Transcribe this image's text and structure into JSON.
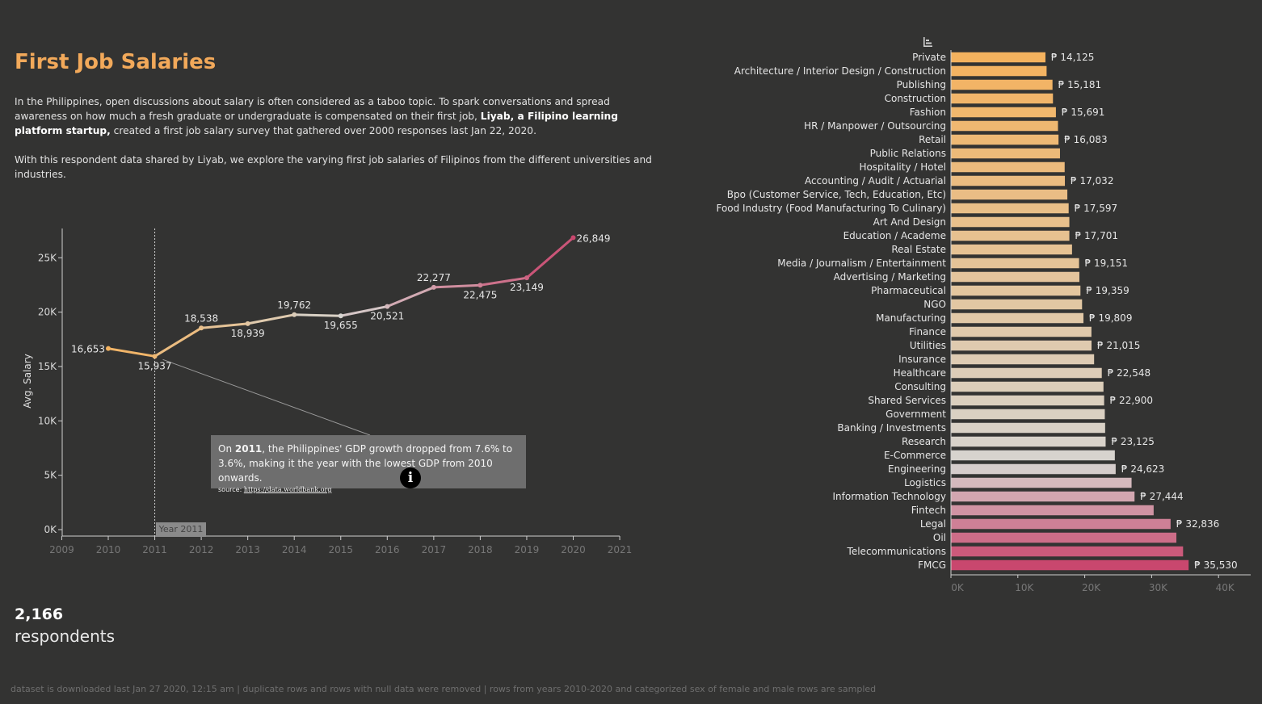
{
  "header": {
    "title": "First Job Salaries",
    "p1_a": "In the Philippines, open discussions about salary is often considered as a taboo topic. To spark conversations and spread awareness on how much a fresh graduate or undergraduate is compensated on their first job, ",
    "p1_bold": "Liyab, a Filipino learning platform startup,",
    "p1_b": " created a first job salary survey that gathered over 2000 responses last Jan 22, 2020.",
    "p2": "With this respondent data shared by Liyab, we explore the varying first job salaries of Filipinos from the different universities and industries."
  },
  "summary": {
    "count": "2,166",
    "label": "respondents"
  },
  "footer": {
    "note": "dataset is downloaded last  Jan 27 2020, 12:15 am | duplicate rows and rows with null data were removed | rows from years 2010-2020 and categorized sex of female and male rows are sampled"
  },
  "annotation": {
    "prefix": "On ",
    "year": "2011",
    "text": ", the Philippines' GDP growth dropped from 7.6% to 3.6%, making it the year with the lowest GDP from 2010 onwards.",
    "source_label": "source: ",
    "source_link": "https://data.worldbank.org",
    "marker_label": "Year 2011"
  },
  "colors": {
    "background": "#333332",
    "accent": "#f2a95a",
    "gradient_start": "#f4b25e",
    "gradient_mid": "#d6d4d0",
    "gradient_end": "#c9476e"
  },
  "chart_data": [
    {
      "type": "line",
      "title": "",
      "ylabel": "Avg. Salary",
      "xlabel": "",
      "x": [
        2010,
        2011,
        2012,
        2013,
        2014,
        2015,
        2016,
        2017,
        2018,
        2019,
        2020
      ],
      "values": [
        16653,
        15937,
        18538,
        18939,
        19762,
        19655,
        20521,
        22277,
        22475,
        23149,
        26849
      ],
      "labels": [
        "16,653",
        "15,937",
        "18,538",
        "18,939",
        "19,762",
        "19,655",
        "20,521",
        "22,277",
        "22,475",
        "23,149",
        "26,849"
      ],
      "xticks": [
        "2009",
        "2010",
        "2011",
        "2012",
        "2013",
        "2014",
        "2015",
        "2016",
        "2017",
        "2018",
        "2019",
        "2020",
        "2021"
      ],
      "xlim": [
        2009,
        2021
      ],
      "yticks": [
        "0K",
        "5K",
        "10K",
        "15K",
        "20K",
        "25K"
      ],
      "ylim": [
        0,
        27000
      ],
      "reference_line_x": 2011
    },
    {
      "type": "bar",
      "orientation": "horizontal",
      "currency": "₱",
      "categories": [
        "Private",
        "Architecture / Interior Design / Construction",
        "Publishing",
        "Construction",
        "Fashion",
        "HR / Manpower / Outsourcing",
        "Retail",
        "Public Relations",
        "Hospitality / Hotel",
        "Accounting / Audit / Actuarial",
        "Bpo (Customer Service, Tech, Education, Etc)",
        "Food Industry (Food Manufacturing To Culinary)",
        "Art And Design",
        "Education / Academe",
        "Real Estate",
        "Media / Journalism / Entertainment",
        "Advertising / Marketing",
        "Pharmaceutical",
        "NGO",
        "Manufacturing",
        "Finance",
        "Utilities",
        "Insurance",
        "Healthcare",
        "Consulting",
        "Shared Services",
        "Government",
        "Banking / Investments",
        "Research",
        "E-Commerce",
        "Engineering",
        "Logistics",
        "Information Technology",
        "Fintech",
        "Legal",
        "Oil",
        "Telecommunications",
        "FMCG"
      ],
      "values": [
        14125,
        14300,
        15181,
        15250,
        15691,
        16000,
        16083,
        16300,
        17000,
        17032,
        17400,
        17597,
        17700,
        17701,
        18100,
        19151,
        19200,
        19359,
        19600,
        19809,
        21000,
        21015,
        21400,
        22548,
        22800,
        22900,
        23000,
        23050,
        23125,
        24500,
        24623,
        27000,
        27444,
        30300,
        32836,
        33700,
        34700,
        35530
      ],
      "value_labels": [
        "₱ 14,125",
        "",
        "₱ 15,181",
        "",
        "₱ 15,691",
        "",
        "₱ 16,083",
        "",
        "",
        "₱ 17,032",
        "",
        "₱ 17,597",
        "",
        "₱ 17,701",
        "",
        "₱ 19,151",
        "",
        "₱ 19,359",
        "",
        "₱ 19,809",
        "",
        "₱ 21,015",
        "",
        "₱ 22,548",
        "",
        "₱ 22,900",
        "",
        "",
        "₱ 23,125",
        "",
        "₱ 24,623",
        "",
        "₱ 27,444",
        "",
        "₱ 32,836",
        "",
        "",
        "₱ 35,530"
      ],
      "xticks": [
        "0K",
        "10K",
        "20K",
        "30K",
        "40K"
      ],
      "xlim": [
        0,
        45000
      ]
    }
  ]
}
